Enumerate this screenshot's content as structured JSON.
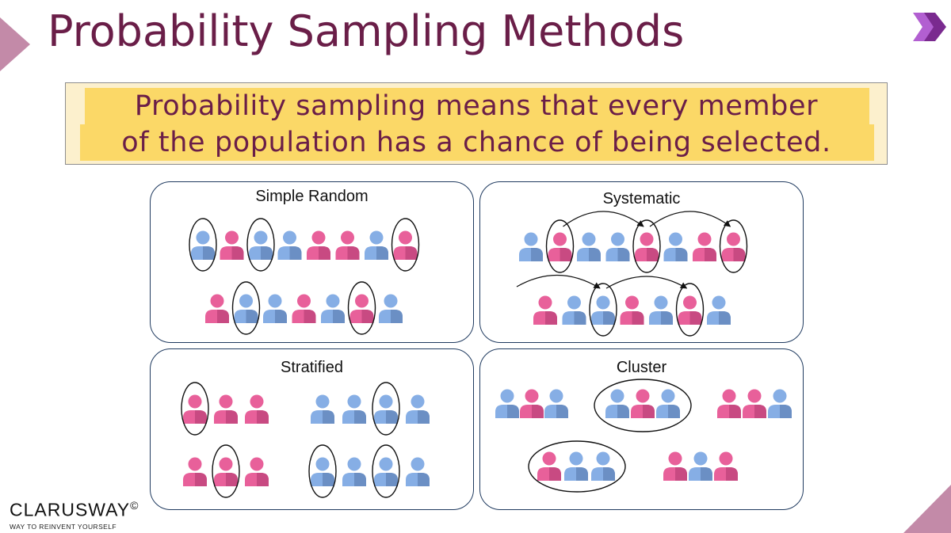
{
  "slide": {
    "title": "Probability Sampling Methods",
    "callout_line1": "Probability sampling means that every member",
    "callout_line2": "of the population has a chance of being selected.",
    "accent_color": "#6a1e48",
    "highlight_color": "#fbd867"
  },
  "panels": [
    {
      "id": "simple-random",
      "title": "Simple Random"
    },
    {
      "id": "systematic",
      "title": "Systematic"
    },
    {
      "id": "stratified",
      "title": "Stratified"
    },
    {
      "id": "cluster",
      "title": "Cluster"
    }
  ],
  "colors": {
    "pink": "#e8609a",
    "blue": "#86aee5",
    "outline": "#111111",
    "panel_border": "#1f3a5f"
  },
  "logo": {
    "name": "CLARUSWAY",
    "mark": "©",
    "tagline": "WAY TO REINVENT YOURSELF"
  },
  "icons": [
    "person-icon",
    "chevron-arrow-icon"
  ]
}
